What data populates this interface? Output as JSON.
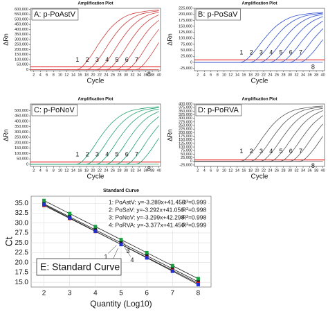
{
  "chart_data": [
    {
      "type": "line",
      "title": "Amplification Plot",
      "label": "A: p-PoAstV",
      "ylabel": "ΔRn",
      "xlabel": "Cycle",
      "color": "#d04040",
      "threshold": 30000,
      "threshold_color": "#e00000",
      "x": [
        1,
        4,
        7,
        10,
        13,
        16,
        19,
        22,
        25,
        28,
        31,
        34,
        37,
        40
      ],
      "xlim": [
        1,
        40.5
      ],
      "xticks": [
        2,
        4,
        6,
        8,
        10,
        12,
        14,
        16,
        18,
        20,
        22,
        24,
        26,
        28,
        30,
        32,
        34,
        36,
        38,
        40
      ],
      "ylim": [
        -10000,
        610000
      ],
      "yticks": [
        0,
        {
          "value": 50000,
          "label": "50,000"
        },
        {
          "value": 100000,
          "label": "100,000"
        },
        {
          "value": 150000,
          "label": "150,000"
        },
        {
          "value": 200000,
          "label": "200,000"
        },
        {
          "value": 250000,
          "label": "250,000"
        },
        {
          "value": 300000,
          "label": "300,000"
        },
        {
          "value": 350000,
          "label": "350,000"
        },
        {
          "value": 400000,
          "label": "400,000"
        },
        {
          "value": 450000,
          "label": "450,000"
        },
        {
          "value": 500000,
          "label": "500,000"
        },
        {
          "value": 550000,
          "label": "550,000"
        },
        {
          "value": 600000,
          "label": "600,000"
        }
      ],
      "series": [
        {
          "name": "1",
          "values": [
            0,
            0,
            0,
            0,
            0,
            12000,
            120000,
            270000,
            402000,
            492000,
            546000,
            570000,
            585000,
            594000
          ]
        },
        {
          "name": "2",
          "values": [
            0,
            0,
            0,
            0,
            0,
            0,
            12000,
            120000,
            270000,
            402000,
            492000,
            546000,
            570000,
            585000
          ]
        },
        {
          "name": "3",
          "values": [
            0,
            0,
            0,
            0,
            0,
            0,
            0,
            12000,
            120000,
            270000,
            402000,
            492000,
            546000,
            570000
          ]
        },
        {
          "name": "4",
          "values": [
            0,
            0,
            0,
            0,
            0,
            0,
            0,
            0,
            12000,
            120000,
            270000,
            402000,
            492000,
            546000
          ]
        },
        {
          "name": "5",
          "values": [
            0,
            0,
            0,
            0,
            0,
            0,
            0,
            0,
            0,
            12000,
            120000,
            270000,
            402000,
            492000
          ]
        },
        {
          "name": "6",
          "values": [
            0,
            0,
            0,
            0,
            0,
            0,
            0,
            0,
            0,
            0,
            12000,
            120000,
            270000,
            402000
          ]
        },
        {
          "name": "7",
          "values": [
            0,
            0,
            0,
            0,
            0,
            0,
            0,
            0,
            0,
            0,
            0,
            12000,
            120000,
            270000
          ]
        },
        {
          "name": "8",
          "values": [
            0,
            0,
            0,
            0,
            0,
            0,
            0,
            0,
            0,
            0,
            0,
            0,
            0,
            0
          ]
        }
      ]
    },
    {
      "type": "line",
      "title": "Amplification Plot",
      "label": "B: p-PoSaV",
      "ylabel": "ΔRn",
      "xlabel": "Cycle",
      "color": "#2f4fd0",
      "threshold": 10000,
      "threshold_color": "#e00000",
      "x": [
        1,
        4,
        7,
        10,
        13,
        16,
        19,
        22,
        25,
        28,
        31,
        34,
        37,
        40
      ],
      "xlim": [
        1,
        40.5
      ],
      "xticks": [
        2,
        4,
        6,
        8,
        10,
        12,
        14,
        16,
        18,
        20,
        22,
        24,
        26,
        28,
        30,
        32,
        34,
        36,
        38,
        40
      ],
      "ylim": [
        -35000,
        225000
      ],
      "yticks": [
        {
          "value": -25000,
          "label": "-25,000"
        },
        0,
        {
          "value": 25000,
          "label": "25,000"
        },
        {
          "value": 50000,
          "label": "50,000"
        },
        {
          "value": 75000,
          "label": "75,000"
        },
        {
          "value": 100000,
          "label": "100,000"
        },
        {
          "value": 125000,
          "label": "125,000"
        },
        {
          "value": 150000,
          "label": "150,000"
        },
        {
          "value": 175000,
          "label": "175,000"
        },
        {
          "value": 200000,
          "label": "200,000"
        },
        {
          "value": 225000,
          "label": "225,000"
        }
      ],
      "series": [
        {
          "name": "1",
          "values": [
            0,
            0,
            0,
            0,
            0,
            4200,
            42000,
            94500,
            140700,
            172200,
            191100,
            199500,
            204750,
            207900
          ]
        },
        {
          "name": "2",
          "values": [
            0,
            0,
            0,
            0,
            0,
            0,
            4200,
            42000,
            94500,
            140700,
            172200,
            191100,
            199500,
            204750
          ]
        },
        {
          "name": "3",
          "values": [
            0,
            0,
            0,
            0,
            0,
            0,
            0,
            4200,
            42000,
            94500,
            140700,
            172200,
            191100,
            199500
          ]
        },
        {
          "name": "4",
          "values": [
            0,
            0,
            0,
            0,
            0,
            0,
            0,
            0,
            4200,
            42000,
            94500,
            140700,
            172200,
            191100
          ]
        },
        {
          "name": "5",
          "values": [
            0,
            0,
            0,
            0,
            0,
            0,
            0,
            0,
            0,
            4200,
            42000,
            94500,
            140700,
            172200
          ]
        },
        {
          "name": "6",
          "values": [
            0,
            0,
            0,
            0,
            0,
            0,
            0,
            0,
            0,
            0,
            4200,
            42000,
            94500,
            140700
          ]
        },
        {
          "name": "7",
          "values": [
            0,
            0,
            0,
            0,
            0,
            0,
            0,
            0,
            0,
            0,
            0,
            4200,
            42000,
            94500
          ]
        },
        {
          "name": "8",
          "values": [
            0,
            0,
            0,
            0,
            0,
            0,
            0,
            0,
            0,
            0,
            0,
            0,
            0,
            0
          ]
        }
      ]
    },
    {
      "type": "line",
      "title": "Amplification Plot",
      "label": "C: p-PoNoV",
      "ylabel": "ΔRn",
      "xlabel": "Cycle",
      "color": "#20a070",
      "threshold": 20000,
      "threshold_color": "#e00000",
      "x": [
        1,
        4,
        7,
        10,
        13,
        16,
        19,
        22,
        25,
        28,
        31,
        34,
        37,
        40
      ],
      "xlim": [
        1,
        40.5
      ],
      "xticks": [
        2,
        4,
        6,
        8,
        10,
        12,
        14,
        16,
        18,
        20,
        22,
        24,
        26,
        28,
        30,
        32,
        34,
        36,
        38,
        40
      ],
      "ylim": [
        -20000,
        560000
      ],
      "yticks": [
        0,
        {
          "value": 50000,
          "label": "50,000"
        },
        {
          "value": 100000,
          "label": "100,000"
        },
        {
          "value": 150000,
          "label": "150,000"
        },
        {
          "value": 200000,
          "label": "200,000"
        },
        {
          "value": 250000,
          "label": "250,000"
        },
        {
          "value": 300000,
          "label": "300,000"
        },
        {
          "value": 350000,
          "label": "350,000"
        },
        {
          "value": 400000,
          "label": "400,000"
        },
        {
          "value": 450000,
          "label": "450,000"
        },
        {
          "value": 500000,
          "label": "500,000"
        }
      ],
      "series": [
        {
          "name": "1",
          "values": [
            0,
            0,
            0,
            0,
            0,
            10800,
            108000,
            243000,
            361800,
            442800,
            491400,
            513000,
            526500,
            534600
          ]
        },
        {
          "name": "2",
          "values": [
            0,
            0,
            0,
            0,
            0,
            0,
            10800,
            108000,
            243000,
            361800,
            442800,
            491400,
            513000,
            526500
          ]
        },
        {
          "name": "3",
          "values": [
            0,
            0,
            0,
            0,
            0,
            0,
            0,
            10800,
            108000,
            243000,
            361800,
            442800,
            491400,
            513000
          ]
        },
        {
          "name": "4",
          "values": [
            0,
            0,
            0,
            0,
            0,
            0,
            0,
            0,
            10800,
            108000,
            243000,
            361800,
            442800,
            491400
          ]
        },
        {
          "name": "5",
          "values": [
            0,
            0,
            0,
            0,
            0,
            0,
            0,
            0,
            0,
            10800,
            108000,
            243000,
            361800,
            442800
          ]
        },
        {
          "name": "6",
          "values": [
            0,
            0,
            0,
            0,
            0,
            0,
            0,
            0,
            0,
            0,
            10800,
            108000,
            243000,
            361800
          ]
        },
        {
          "name": "7",
          "values": [
            0,
            0,
            0,
            0,
            0,
            0,
            0,
            0,
            0,
            0,
            0,
            10800,
            108000,
            243000
          ]
        },
        {
          "name": "8",
          "values": [
            0,
            0,
            0,
            0,
            0,
            0,
            0,
            0,
            0,
            0,
            0,
            0,
            0,
            0
          ]
        }
      ]
    },
    {
      "type": "line",
      "title": "Amplification Plot",
      "label": "D: p-PoRVA",
      "ylabel": "ΔRn",
      "xlabel": "Cycle",
      "color": "#555555",
      "threshold": 10000,
      "threshold_color": "#e00000",
      "x": [
        1,
        4,
        7,
        10,
        13,
        16,
        19,
        22,
        25,
        28,
        31,
        34,
        37,
        40
      ],
      "xlim": [
        1,
        40.5
      ],
      "xticks": [
        2,
        4,
        6,
        8,
        10,
        12,
        14,
        16,
        18,
        20,
        22,
        24,
        26,
        28,
        30,
        32,
        34,
        36,
        38,
        40
      ],
      "ylim": [
        -35000,
        400000
      ],
      "yticks": [
        {
          "value": -25000,
          "label": "-25,000"
        },
        0,
        {
          "value": 25000,
          "label": "25,000"
        },
        {
          "value": 50000,
          "label": "50,000"
        },
        {
          "value": 75000,
          "label": "75,000"
        },
        {
          "value": 100000,
          "label": "100,000"
        },
        {
          "value": 125000,
          "label": "125,000"
        },
        {
          "value": 150000,
          "label": "150,000"
        },
        {
          "value": 175000,
          "label": "175,000"
        },
        {
          "value": 200000,
          "label": "200,000"
        },
        {
          "value": 225000,
          "label": "225,000"
        },
        {
          "value": 250000,
          "label": "250,000"
        },
        {
          "value": 275000,
          "label": "275,000"
        },
        {
          "value": 300000,
          "label": "300,000"
        },
        {
          "value": 325000,
          "label": "325,000"
        },
        {
          "value": 350000,
          "label": "350,000"
        },
        {
          "value": 375000,
          "label": "375,000"
        },
        {
          "value": 400000,
          "label": "400,000"
        }
      ],
      "series": [
        {
          "name": "1",
          "values": [
            0,
            0,
            0,
            0,
            0,
            7800,
            78000,
            175500,
            261300,
            319800,
            354900,
            370500,
            380250,
            386100
          ]
        },
        {
          "name": "2",
          "values": [
            0,
            0,
            0,
            0,
            0,
            0,
            7800,
            78000,
            175500,
            261300,
            319800,
            354900,
            370500,
            380250
          ]
        },
        {
          "name": "3",
          "values": [
            0,
            0,
            0,
            0,
            0,
            0,
            0,
            7800,
            78000,
            175500,
            261300,
            319800,
            354900,
            370500
          ]
        },
        {
          "name": "4",
          "values": [
            0,
            0,
            0,
            0,
            0,
            0,
            0,
            0,
            7800,
            78000,
            175500,
            261300,
            319800,
            354900
          ]
        },
        {
          "name": "5",
          "values": [
            0,
            0,
            0,
            0,
            0,
            0,
            0,
            0,
            0,
            7800,
            78000,
            175500,
            261300,
            319800
          ]
        },
        {
          "name": "6",
          "values": [
            0,
            0,
            0,
            0,
            0,
            0,
            0,
            0,
            0,
            0,
            7800,
            78000,
            175500,
            261300
          ]
        },
        {
          "name": "7",
          "values": [
            0,
            0,
            0,
            0,
            0,
            0,
            0,
            0,
            0,
            0,
            0,
            7800,
            78000,
            175500
          ]
        },
        {
          "name": "8",
          "values": [
            0,
            0,
            0,
            0,
            0,
            0,
            0,
            0,
            0,
            0,
            0,
            0,
            0,
            0
          ]
        }
      ]
    },
    {
      "type": "scatter",
      "title": "Standard Curve",
      "label": "E: Standard Curve",
      "xlabel": "Quantity (Log10)",
      "ylabel": "Ct",
      "grid": true,
      "x": [
        2,
        3,
        4,
        5,
        6,
        7,
        8
      ],
      "xlim": [
        1.5,
        8.5
      ],
      "xticks": [
        2,
        3,
        4,
        5,
        6,
        7,
        8
      ],
      "ylim": [
        13.8,
        36.8
      ],
      "yticks": [
        {
          "value": 15,
          "label": "15.0"
        },
        17.5,
        {
          "value": 20,
          "label": "20.0"
        },
        22.5,
        {
          "value": 25,
          "label": "25.0"
        },
        27.5,
        {
          "value": 30,
          "label": "30.0"
        },
        32.5,
        {
          "value": 35,
          "label": "35.0"
        }
      ],
      "series": [
        {
          "name": "1",
          "color": "#111111",
          "equation": "1: PoAstV: y=-3.289x+41.450",
          "r2": "R²=0.999",
          "values": [
            34.87,
            31.58,
            28.29,
            25.01,
            21.72,
            18.43,
            15.14
          ]
        },
        {
          "name": "2",
          "color": "#d02020",
          "equation": "2: PoSaV: y=-3.292x+41.056",
          "r2": "R²=0.998",
          "values": [
            34.47,
            31.18,
            27.89,
            24.6,
            21.3,
            18.02,
            14.72
          ]
        },
        {
          "name": "3",
          "color": "#18a040",
          "equation": "3: PoNoV: y=-3.299x+42.298",
          "r2": "R²=0.998",
          "values": [
            35.7,
            32.4,
            29.1,
            25.8,
            22.5,
            19.2,
            15.91
          ]
        },
        {
          "name": "4",
          "color": "#2030d0",
          "equation": "4: PoRVA: y=-3.377x+41.450",
          "r2": "R²=0.999",
          "values": [
            34.7,
            31.32,
            27.94,
            24.57,
            21.19,
            17.81,
            14.43
          ]
        }
      ]
    }
  ]
}
